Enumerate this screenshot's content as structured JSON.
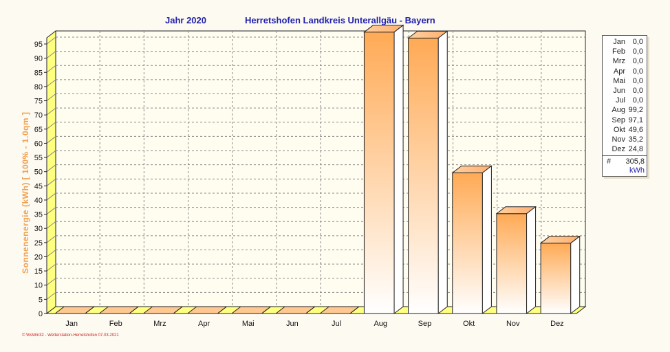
{
  "chart_data": {
    "type": "bar",
    "title_left": "Jahr  2020",
    "title_right": "Herretshofen Landkreis Unterallgäu - Bayern",
    "ylabel": "Sonnenenergie  (kWh)    [ 100% - 1.0qm ]",
    "categories": [
      "Jan",
      "Feb",
      "Mrz",
      "Apr",
      "Mai",
      "Jun",
      "Jul",
      "Aug",
      "Sep",
      "Okt",
      "Nov",
      "Dez"
    ],
    "values": [
      0,
      0,
      0,
      0,
      0,
      0,
      0,
      99.2,
      97.1,
      49.6,
      35.2,
      24.8
    ],
    "ylim": [
      0,
      95
    ],
    "yticks": [
      0,
      5,
      10,
      15,
      20,
      25,
      30,
      35,
      40,
      45,
      50,
      55,
      60,
      65,
      70,
      75,
      80,
      85,
      90,
      95
    ],
    "grid": true,
    "legend_position": "right"
  },
  "legend": {
    "rows": [
      {
        "month": "Jan",
        "value": "0,0"
      },
      {
        "month": "Feb",
        "value": "0,0"
      },
      {
        "month": "Mrz",
        "value": "0,0"
      },
      {
        "month": "Apr",
        "value": "0,0"
      },
      {
        "month": "Mai",
        "value": "0,0"
      },
      {
        "month": "Jun",
        "value": "0,0"
      },
      {
        "month": "Jul",
        "value": "0,0"
      },
      {
        "month": "Aug",
        "value": "99,2"
      },
      {
        "month": "Sep",
        "value": "97,1"
      },
      {
        "month": "Okt",
        "value": "49,6"
      },
      {
        "month": "Nov",
        "value": "35,2"
      },
      {
        "month": "Dez",
        "value": "24,8"
      }
    ],
    "total_symbol": "#",
    "total_value": "305,8",
    "total_unit": "kWh"
  },
  "footer": "© WsWin32 - Wetterstation-Herretshofen 07.03.2021",
  "colors": {
    "bar_top": "#ffb060",
    "bar_bottom": "#ffffff",
    "axis_wall": "#ffff80",
    "title": "#2222aa",
    "ylabel": "#f0a050",
    "footer": "#cc2222"
  }
}
